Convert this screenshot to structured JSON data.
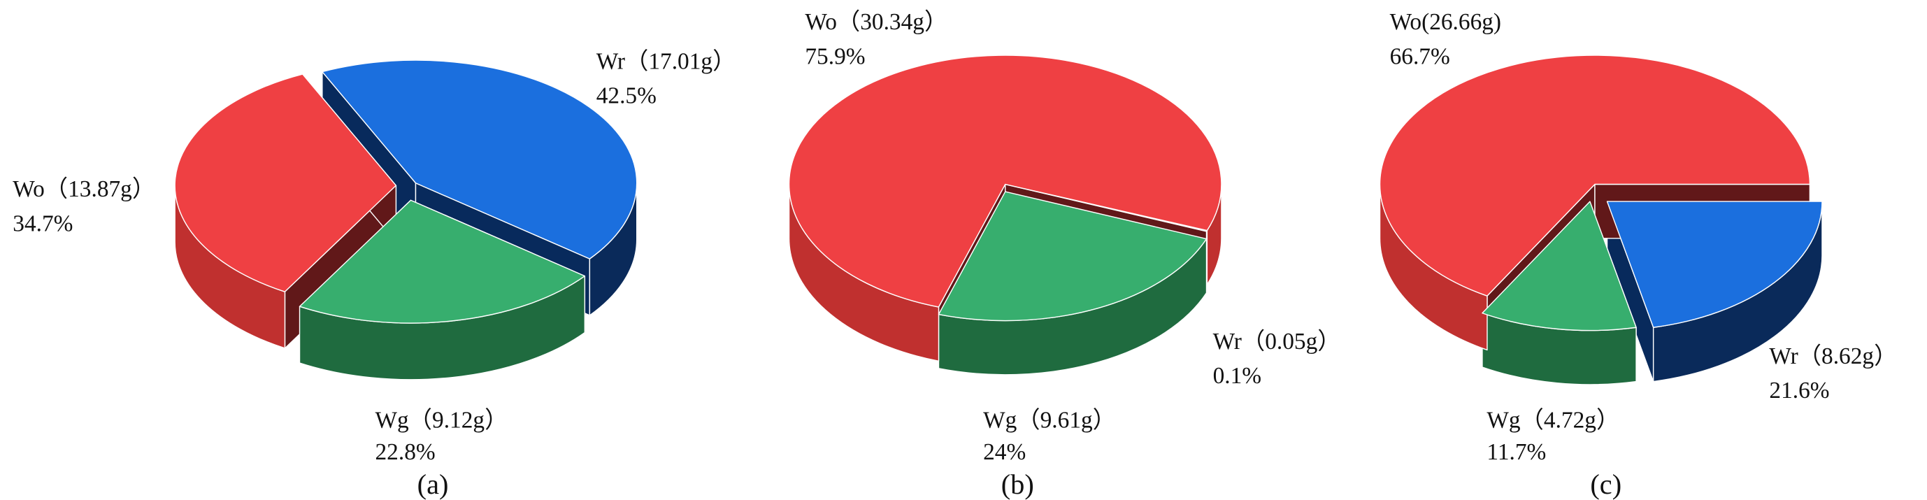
{
  "colors": {
    "Wo": {
      "top": "#EF4043",
      "side": "#C0302F",
      "wall": "#611819"
    },
    "Wr": {
      "top": "#1B6FDE",
      "side": "#0A2A5A",
      "wall": "#082A5C"
    },
    "Wg": {
      "top": "#37AE6E",
      "side": "#1F6B3F",
      "wall": "#1A5C35"
    }
  },
  "chart_data": [
    {
      "type": "pie",
      "style": "3d-exploded",
      "caption": "(a)",
      "slices": [
        {
          "key": "Wr",
          "label": "Wr（17.01g）",
          "value": 17.01,
          "percent_label": "42.5%",
          "percent": 42.5
        },
        {
          "key": "Wg",
          "label": "Wg（9.12g）",
          "value": 9.12,
          "percent_label": "22.8%",
          "percent": 22.8
        },
        {
          "key": "Wo",
          "label": "Wo（13.87g）",
          "value": 13.87,
          "percent_label": "34.7%",
          "percent": 34.7
        }
      ]
    },
    {
      "type": "pie",
      "style": "3d-exploded",
      "caption": "(b)",
      "slices": [
        {
          "key": "Wr",
          "label": "Wr（0.05g）",
          "value": 0.05,
          "percent_label": "0.1%",
          "percent": 0.1
        },
        {
          "key": "Wg",
          "label": "Wg（9.61g）",
          "value": 9.61,
          "percent_label": "24%",
          "percent": 24
        },
        {
          "key": "Wo",
          "label": "Wo（30.34g）",
          "value": 30.34,
          "percent_label": "75.9%",
          "percent": 75.9
        }
      ]
    },
    {
      "type": "pie",
      "style": "3d-exploded",
      "caption": "(c)",
      "slices": [
        {
          "key": "Wr",
          "label": "Wr（8.62g）",
          "value": 8.62,
          "percent_label": "21.6%",
          "percent": 21.6
        },
        {
          "key": "Wg",
          "label": "Wg（4.72g）",
          "value": 4.72,
          "percent_label": "11.7%",
          "percent": 11.7
        },
        {
          "key": "Wo",
          "label": "Wo(26.66g)",
          "value": 26.66,
          "percent_label": "66.7%",
          "percent": 66.7
        }
      ]
    }
  ]
}
